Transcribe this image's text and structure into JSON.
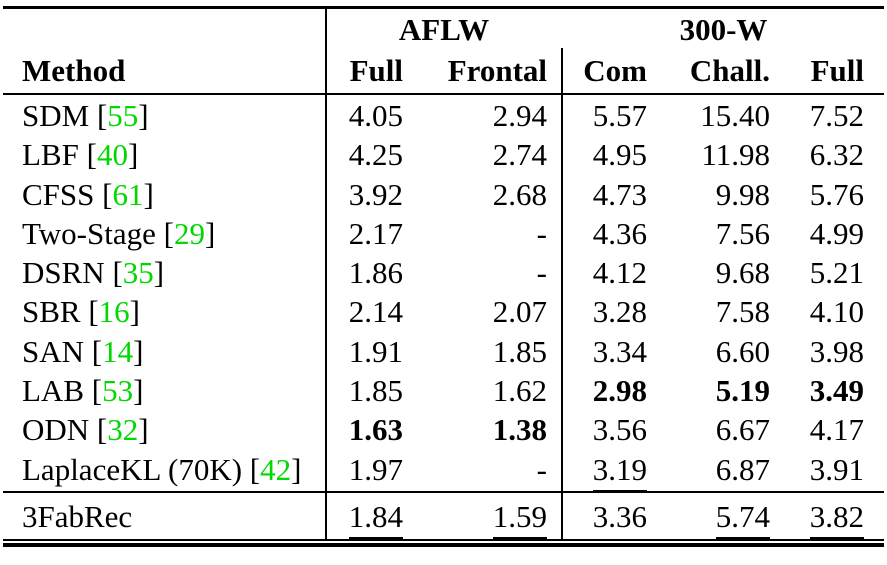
{
  "table": {
    "group_headers": [
      {
        "label": "AFLW",
        "spans": [
          "Full",
          "Frontal"
        ]
      },
      {
        "label": "300-W",
        "spans": [
          "Com",
          "Chall.",
          "Full"
        ]
      }
    ],
    "column_headers": [
      "Method",
      "Full",
      "Frontal",
      "Com",
      "Chall.",
      "Full"
    ],
    "rows": [
      {
        "prefix": "SDM [",
        "cite": "55",
        "suffix": "]",
        "cells": [
          {
            "t": "4.05"
          },
          {
            "t": "2.94"
          },
          {
            "t": "5.57"
          },
          {
            "t": "15.40"
          },
          {
            "t": "7.52"
          }
        ]
      },
      {
        "prefix": "LBF [",
        "cite": "40",
        "suffix": "]",
        "cells": [
          {
            "t": "4.25"
          },
          {
            "t": "2.74"
          },
          {
            "t": "4.95"
          },
          {
            "t": "11.98"
          },
          {
            "t": "6.32"
          }
        ]
      },
      {
        "prefix": "CFSS [",
        "cite": "61",
        "suffix": "]",
        "cells": [
          {
            "t": "3.92"
          },
          {
            "t": "2.68"
          },
          {
            "t": "4.73"
          },
          {
            "t": "9.98"
          },
          {
            "t": "5.76"
          }
        ]
      },
      {
        "prefix": "Two-Stage [",
        "cite": "29",
        "suffix": "]",
        "cells": [
          {
            "t": "2.17"
          },
          {
            "t": "-"
          },
          {
            "t": "4.36"
          },
          {
            "t": "7.56"
          },
          {
            "t": "4.99"
          }
        ]
      },
      {
        "prefix": "DSRN [",
        "cite": "35",
        "suffix": "]",
        "cells": [
          {
            "t": "1.86"
          },
          {
            "t": "-"
          },
          {
            "t": "4.12"
          },
          {
            "t": "9.68"
          },
          {
            "t": "5.21"
          }
        ]
      },
      {
        "prefix": "SBR [",
        "cite": "16",
        "suffix": "]",
        "cells": [
          {
            "t": "2.14"
          },
          {
            "t": "2.07"
          },
          {
            "t": "3.28"
          },
          {
            "t": "7.58"
          },
          {
            "t": "4.10"
          }
        ]
      },
      {
        "prefix": "SAN [",
        "cite": "14",
        "suffix": "]",
        "cells": [
          {
            "t": "1.91"
          },
          {
            "t": "1.85"
          },
          {
            "t": "3.34"
          },
          {
            "t": "6.60"
          },
          {
            "t": "3.98"
          }
        ]
      },
      {
        "prefix": "LAB [",
        "cite": "53",
        "suffix": "]",
        "cells": [
          {
            "t": "1.85"
          },
          {
            "t": "1.62"
          },
          {
            "t": "2.98",
            "b": 1
          },
          {
            "t": "5.19",
            "b": 1
          },
          {
            "t": "3.49",
            "b": 1
          }
        ]
      },
      {
        "prefix": "ODN [",
        "cite": "32",
        "suffix": "]",
        "cells": [
          {
            "t": "1.63",
            "b": 1
          },
          {
            "t": "1.38",
            "b": 1
          },
          {
            "t": "3.56"
          },
          {
            "t": "6.67"
          },
          {
            "t": "4.17"
          }
        ]
      },
      {
        "prefix": "LaplaceKL (70K) [",
        "cite": "42",
        "suffix": "]",
        "cells": [
          {
            "t": "1.97"
          },
          {
            "t": "-"
          },
          {
            "t": "3.19",
            "u": 1
          },
          {
            "t": "6.87"
          },
          {
            "t": "3.91"
          }
        ]
      },
      {
        "prefix": "3FabRec",
        "cite": "",
        "suffix": "",
        "final": true,
        "cells": [
          {
            "t": "1.84",
            "u": 1
          },
          {
            "t": "1.59",
            "u": 1
          },
          {
            "t": "3.36"
          },
          {
            "t": "5.74",
            "u": 1
          },
          {
            "t": "3.82",
            "u": 1
          }
        ]
      }
    ],
    "colors": {
      "citation_green": "#00d800",
      "text": "#000000",
      "background": "#ffffff"
    }
  }
}
